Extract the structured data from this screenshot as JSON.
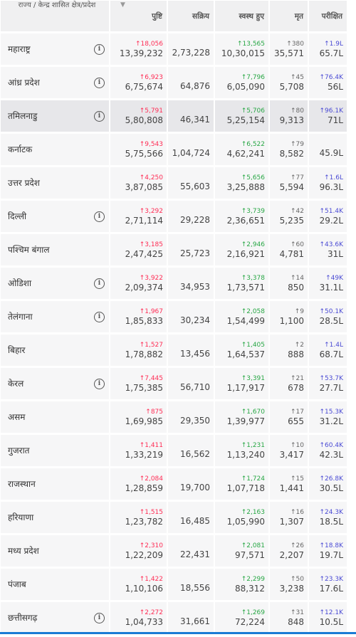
{
  "header": {
    "state": "राज्य / केन्द्र शासित क्षेत्र/प्रदेश",
    "confirmed": "पुष्टि",
    "active": "सक्रिय",
    "recovered": "स्वस्थ हुए",
    "deceased": "मृत",
    "tested": "परीक्षित"
  },
  "rows": [
    {
      "state": "महाराष्ट्र",
      "info": true,
      "dc": "18,056",
      "c": "13,39,232",
      "a": "2,73,228",
      "dr": "13,565",
      "r": "10,30,015",
      "dd": "380",
      "d": "35,571",
      "dt": "1.9L",
      "t": "65.7L"
    },
    {
      "state": "आंध्र प्रदेश",
      "info": true,
      "dc": "6,923",
      "c": "6,75,674",
      "a": "64,876",
      "dr": "7,796",
      "r": "6,05,090",
      "dd": "45",
      "d": "5,708",
      "dt": "76.4K",
      "t": "56L"
    },
    {
      "state": "तमिलनाडु",
      "info": true,
      "dc": "5,791",
      "c": "5,80,808",
      "a": "46,341",
      "dr": "5,706",
      "r": "5,25,154",
      "dd": "80",
      "d": "9,313",
      "dt": "96.1K",
      "t": "71L"
    },
    {
      "state": "कर्नाटक",
      "info": false,
      "dc": "9,543",
      "c": "5,75,566",
      "a": "1,04,724",
      "dr": "6,522",
      "r": "4,62,241",
      "dd": "79",
      "d": "8,582",
      "dt": "",
      "t": "45.9L"
    },
    {
      "state": "उत्तर प्रदेश",
      "info": false,
      "dc": "4,250",
      "c": "3,87,085",
      "a": "55,603",
      "dr": "5,656",
      "r": "3,25,888",
      "dd": "77",
      "d": "5,594",
      "dt": "1.6L",
      "t": "96.3L"
    },
    {
      "state": "दिल्ली",
      "info": true,
      "dc": "3,292",
      "c": "2,71,114",
      "a": "29,228",
      "dr": "3,739",
      "r": "2,36,651",
      "dd": "42",
      "d": "5,235",
      "dt": "51.4K",
      "t": "29.2L"
    },
    {
      "state": "पश्चिम बंगाल",
      "info": false,
      "dc": "3,185",
      "c": "2,47,425",
      "a": "25,723",
      "dr": "2,946",
      "r": "2,16,921",
      "dd": "60",
      "d": "4,781",
      "dt": "43.6K",
      "t": "31L"
    },
    {
      "state": "ओडिशा",
      "info": true,
      "dc": "3,922",
      "c": "2,09,374",
      "a": "34,953",
      "dr": "3,378",
      "r": "1,73,571",
      "dd": "14",
      "d": "850",
      "dt": "49K",
      "t": "31.1L"
    },
    {
      "state": "तेलंगाना",
      "info": true,
      "dc": "1,967",
      "c": "1,85,833",
      "a": "30,234",
      "dr": "2,058",
      "r": "1,54,499",
      "dd": "9",
      "d": "1,100",
      "dt": "50.1K",
      "t": "28.5L"
    },
    {
      "state": "बिहार",
      "info": false,
      "dc": "1,527",
      "c": "1,78,882",
      "a": "13,456",
      "dr": "1,405",
      "r": "1,64,537",
      "dd": "2",
      "d": "888",
      "dt": "1.4L",
      "t": "68.7L"
    },
    {
      "state": "केरल",
      "info": true,
      "dc": "7,445",
      "c": "1,75,385",
      "a": "56,710",
      "dr": "3,391",
      "r": "1,17,917",
      "dd": "21",
      "d": "678",
      "dt": "53.7K",
      "t": "27.7L"
    },
    {
      "state": "असम",
      "info": false,
      "dc": "875",
      "c": "1,69,985",
      "a": "29,350",
      "dr": "1,670",
      "r": "1,39,977",
      "dd": "17",
      "d": "655",
      "dt": "15.3K",
      "t": "31.2L"
    },
    {
      "state": "गुजरात",
      "info": false,
      "dc": "1,411",
      "c": "1,33,219",
      "a": "16,562",
      "dr": "1,231",
      "r": "1,13,240",
      "dd": "10",
      "d": "3,417",
      "dt": "60.4K",
      "t": "42.3L"
    },
    {
      "state": "राजस्थान",
      "info": false,
      "dc": "2,084",
      "c": "1,28,859",
      "a": "19,700",
      "dr": "1,724",
      "r": "1,07,718",
      "dd": "15",
      "d": "1,441",
      "dt": "26.8K",
      "t": "30.5L"
    },
    {
      "state": "हरियाणा",
      "info": false,
      "dc": "1,515",
      "c": "1,23,782",
      "a": "16,485",
      "dr": "2,163",
      "r": "1,05,990",
      "dd": "16",
      "d": "1,307",
      "dt": "24.3K",
      "t": "18.5L"
    },
    {
      "state": "मध्य प्रदेश",
      "info": false,
      "dc": "2,310",
      "c": "1,22,209",
      "a": "22,431",
      "dr": "2,081",
      "r": "97,571",
      "dd": "26",
      "d": "2,207",
      "dt": "18.8K",
      "t": "19.7L"
    },
    {
      "state": "पंजाब",
      "info": false,
      "dc": "1,422",
      "c": "1,10,106",
      "a": "18,556",
      "dr": "2,299",
      "r": "88,312",
      "dd": "50",
      "d": "3,238",
      "dt": "23.3K",
      "t": "17.6L"
    },
    {
      "state": "छत्तीसगढ़",
      "info": true,
      "dc": "2,272",
      "c": "1,04,733",
      "a": "31,661",
      "dr": "1,269",
      "r": "72,224",
      "dd": "31",
      "d": "848",
      "dt": "12.1K",
      "t": "10.5L"
    }
  ]
}
